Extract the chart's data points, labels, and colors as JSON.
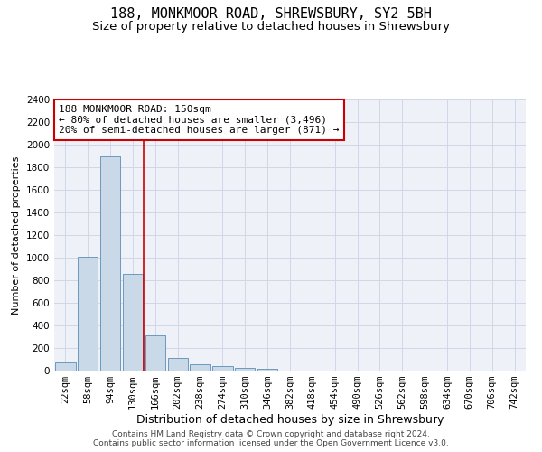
{
  "title": "188, MONKMOOR ROAD, SHREWSBURY, SY2 5BH",
  "subtitle": "Size of property relative to detached houses in Shrewsbury",
  "xlabel": "Distribution of detached houses by size in Shrewsbury",
  "ylabel": "Number of detached properties",
  "footer_line1": "Contains HM Land Registry data © Crown copyright and database right 2024.",
  "footer_line2": "Contains public sector information licensed under the Open Government Licence v3.0.",
  "bin_labels": [
    "22sqm",
    "58sqm",
    "94sqm",
    "130sqm",
    "166sqm",
    "202sqm",
    "238sqm",
    "274sqm",
    "310sqm",
    "346sqm",
    "382sqm",
    "418sqm",
    "454sqm",
    "490sqm",
    "526sqm",
    "562sqm",
    "598sqm",
    "634sqm",
    "670sqm",
    "706sqm",
    "742sqm"
  ],
  "bar_values": [
    80,
    1010,
    1900,
    860,
    310,
    115,
    55,
    40,
    25,
    15,
    0,
    0,
    0,
    0,
    0,
    0,
    0,
    0,
    0,
    0,
    0
  ],
  "bar_color": "#c9d9e8",
  "bar_edge_color": "#5b8db8",
  "annotation_line1": "188 MONKMOOR ROAD: 150sqm",
  "annotation_line2": "← 80% of detached houses are smaller (3,496)",
  "annotation_line3": "20% of semi-detached houses are larger (871) →",
  "annotation_box_color": "#ffffff",
  "annotation_box_edge": "#cc0000",
  "vline_x": 3.5,
  "vline_color": "#cc0000",
  "ylim": [
    0,
    2400
  ],
  "yticks": [
    0,
    200,
    400,
    600,
    800,
    1000,
    1200,
    1400,
    1600,
    1800,
    2000,
    2200,
    2400
  ],
  "grid_color": "#d0d8e8",
  "bg_color": "#eef2f8",
  "title_fontsize": 11,
  "subtitle_fontsize": 9.5,
  "xlabel_fontsize": 9,
  "ylabel_fontsize": 8,
  "tick_fontsize": 7.5,
  "annotation_fontsize": 8,
  "footer_fontsize": 6.5
}
